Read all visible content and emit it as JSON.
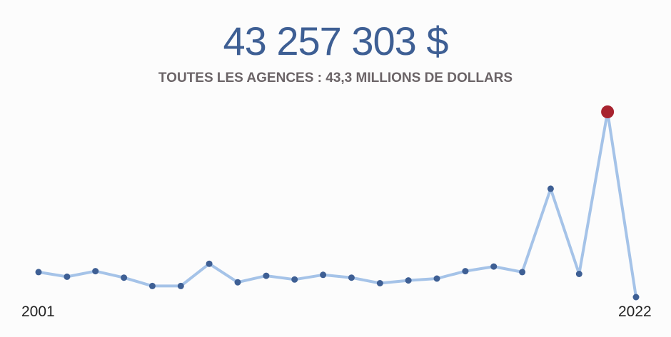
{
  "header": {
    "total_amount": "43 257 303 $",
    "subtitle": "TOUTES LES AGENCES : 43,3 MILLIONS DE DOLLARS"
  },
  "axis": {
    "start_label": "2001",
    "end_label": "2022"
  },
  "colors": {
    "line": "#a5c3e8",
    "point": "#3e5f94",
    "highlight": "#a8232f",
    "title": "#3e5f94",
    "subtitle": "#6b6467"
  },
  "chart_data": {
    "type": "line",
    "title": "",
    "xlabel": "",
    "ylabel": "",
    "grid": false,
    "legend": "none",
    "x": [
      2001,
      2002,
      2003,
      2004,
      2005,
      2006,
      2007,
      2008,
      2009,
      2010,
      2011,
      2012,
      2013,
      2014,
      2015,
      2016,
      2017,
      2018,
      2019,
      2020,
      2021,
      2022
    ],
    "series": [
      {
        "values": [
          0.135,
          0.11,
          0.14,
          0.105,
          0.06,
          0.06,
          0.18,
          0.08,
          0.115,
          0.095,
          0.12,
          0.105,
          0.075,
          0.09,
          0.1,
          0.14,
          0.165,
          0.135,
          0.585,
          0.125,
          1.0,
          0.0
        ]
      }
    ],
    "highlight_index": 20,
    "ylim": [
      0,
      1
    ]
  }
}
